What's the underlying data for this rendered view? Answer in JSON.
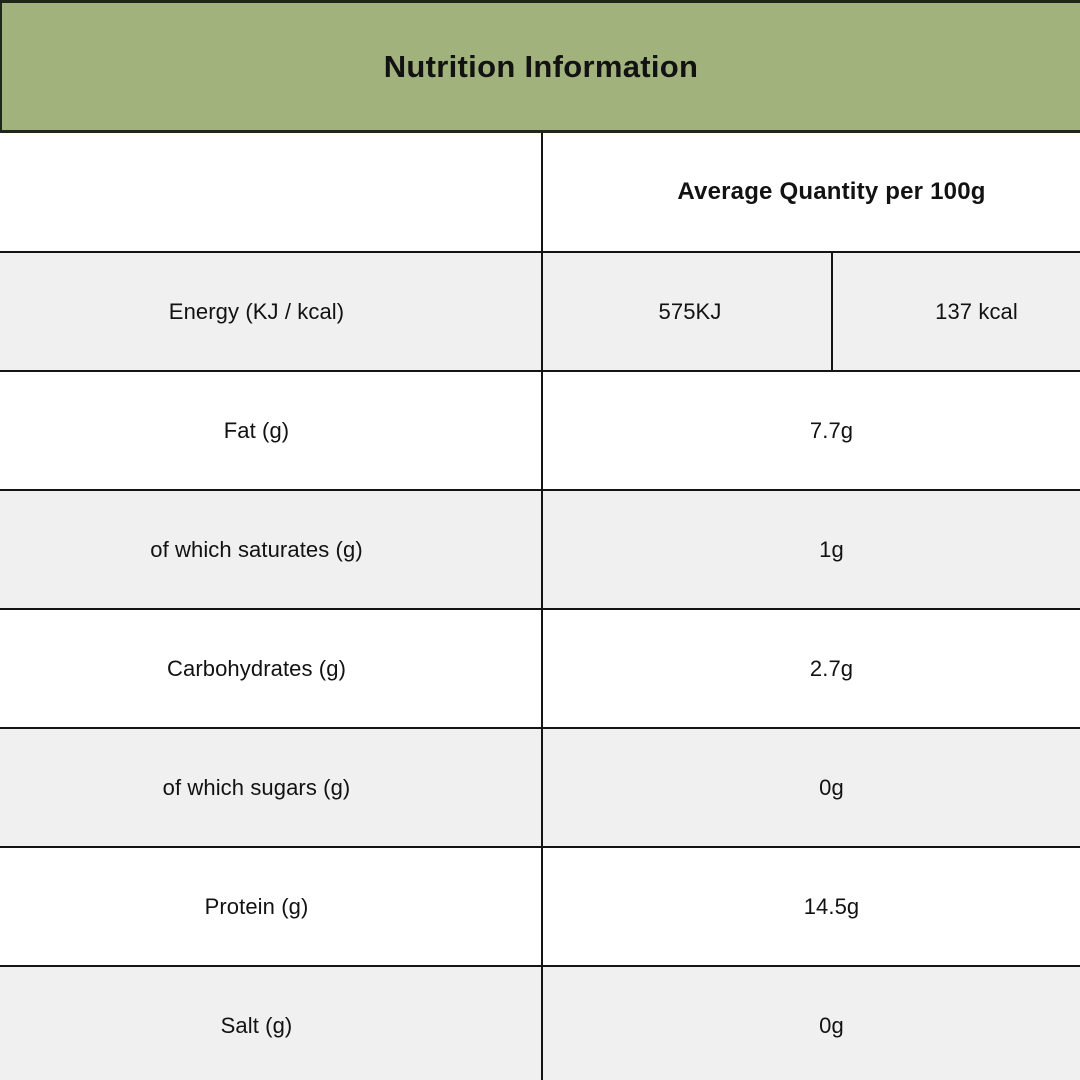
{
  "banner": {
    "title": "Nutrition Information"
  },
  "table": {
    "header": {
      "value_column_label": "Average Quantity per 100g"
    },
    "energy_row": {
      "label": "Energy (KJ / kcal)",
      "value_kj": "575KJ",
      "value_kcal": "137 kcal"
    },
    "rows": [
      {
        "label": "Fat (g)",
        "value": "7.7g"
      },
      {
        "label": "of which saturates (g)",
        "value": "1g"
      },
      {
        "label": "Carbohydrates (g)",
        "value": "2.7g"
      },
      {
        "label": "of which sugars (g)",
        "value": "0g"
      },
      {
        "label": "Protein (g)",
        "value": "14.5g"
      },
      {
        "label": "Salt (g)",
        "value": "0g"
      }
    ]
  },
  "colors": {
    "banner_green": "#a1b27d",
    "row_alt_gray": "#f0f0f0",
    "table_border": "#141414",
    "banner_border": "#20261a",
    "text": "#121212"
  }
}
